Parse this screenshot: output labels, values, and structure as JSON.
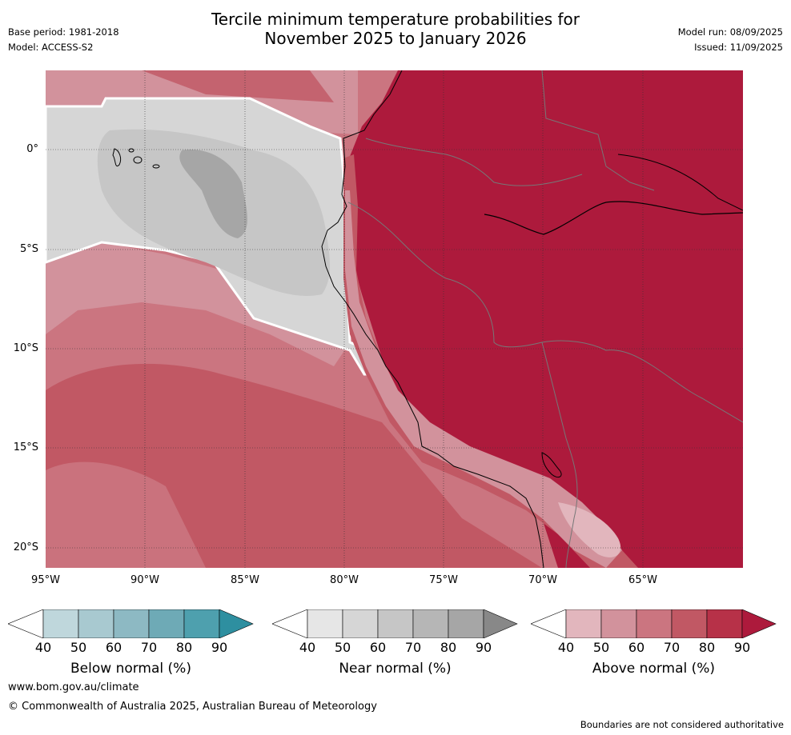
{
  "header": {
    "title_line1": "Tercile minimum temperature probabilities for",
    "title_line2": "November 2025 to January 2026",
    "base_period": "Base period: 1981-2018",
    "model": "Model: ACCESS-S2",
    "model_run": "Model run: 08/09/2025",
    "issued": "Issued: 11/09/2025"
  },
  "map": {
    "lat_labels": [
      "0°",
      "5°S",
      "10°S",
      "15°S",
      "20°S"
    ],
    "lon_labels": [
      "95°W",
      "90°W",
      "85°W",
      "80°W",
      "75°W",
      "70°W",
      "65°W"
    ]
  },
  "colorbars": [
    {
      "title": "Below normal (%)",
      "ticks": [
        "40",
        "50",
        "60",
        "70",
        "80",
        "90"
      ],
      "colors": [
        "#bfd7dc",
        "#a8c9d0",
        "#8db9c3",
        "#6eaab6",
        "#4ea0ae",
        "#2e8fa0"
      ]
    },
    {
      "title": "Near normal (%)",
      "ticks": [
        "40",
        "50",
        "60",
        "70",
        "80",
        "90"
      ],
      "colors": [
        "#e6e6e6",
        "#d6d6d6",
        "#c6c6c6",
        "#b6b6b6",
        "#a6a6a6",
        "#888888"
      ]
    },
    {
      "title": "Above normal (%)",
      "ticks": [
        "40",
        "50",
        "60",
        "70",
        "80",
        "90"
      ],
      "colors": [
        "#e2b6bd",
        "#d2929c",
        "#cb7580",
        "#c15864",
        "#b73148",
        "#ad1a3c"
      ]
    }
  ],
  "footer": {
    "website": "www.bom.gov.au/climate",
    "copyright": "© Commonwealth of Australia 2025, Australian Bureau of Meteorology",
    "disclaimer": "Boundaries are not considered authoritative"
  }
}
